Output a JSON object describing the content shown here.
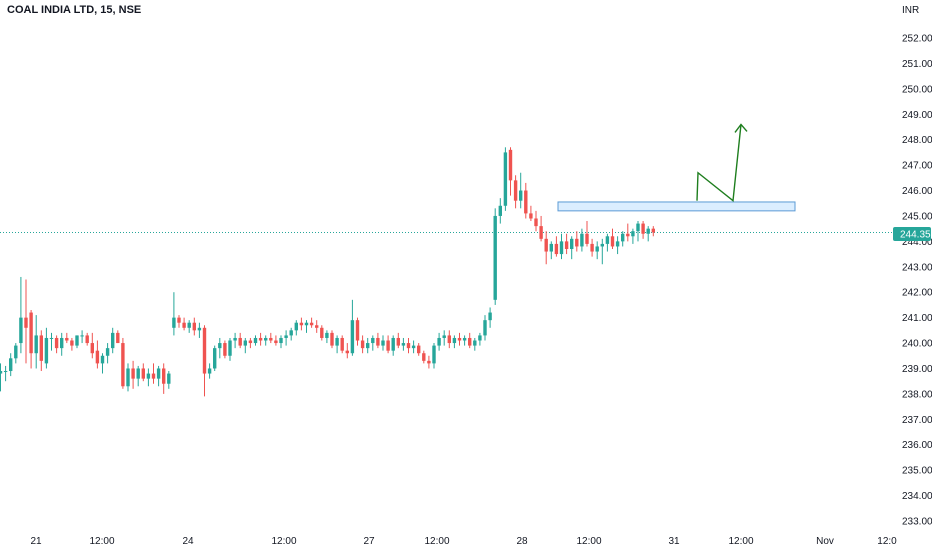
{
  "chart_data": {
    "type": "candlestick",
    "title": "COAL INDIA LTD, 15, NSE",
    "currency": "INR",
    "last_price": "244.35",
    "ylim": [
      232.7,
      252.5
    ],
    "y_ticks": [
      "252.00",
      "251.00",
      "250.00",
      "249.00",
      "248.00",
      "247.00",
      "246.00",
      "245.00",
      "244.00",
      "243.00",
      "242.00",
      "241.00",
      "240.00",
      "239.00",
      "238.00",
      "237.00",
      "236.00",
      "235.00",
      "234.00",
      "233.00"
    ],
    "x_ticks": [
      "21",
      "12:00",
      "24",
      "12:00",
      "27",
      "12:00",
      "28",
      "12:00",
      "31",
      "12:00",
      "Nov",
      "12:0"
    ],
    "colors": {
      "up": "#26a69a",
      "down": "#ef5350",
      "arrow": "#1e7e1e",
      "zone_fill": "#dbeeff",
      "zone_stroke": "#5b9bd5",
      "price_line": "#26a69a"
    },
    "zone": {
      "low": 245.2,
      "high": 245.55
    },
    "projection_arrow": [
      245.6,
      246.7,
      245.6,
      248.6
    ],
    "candles": [
      [
        238.8,
        239.2,
        238.1,
        238.9
      ],
      [
        238.9,
        239.1,
        238.5,
        238.9
      ],
      [
        238.9,
        239.6,
        238.7,
        239.4
      ],
      [
        239.4,
        240.0,
        239.2,
        239.9
      ],
      [
        240.0,
        242.6,
        239.6,
        241.0
      ],
      [
        241.0,
        242.5,
        239.2,
        240.6
      ],
      [
        241.2,
        241.3,
        239.0,
        239.6
      ],
      [
        239.6,
        241.1,
        239.0,
        240.3
      ],
      [
        240.3,
        240.5,
        238.9,
        239.3
      ],
      [
        239.2,
        240.6,
        239.0,
        240.2
      ],
      [
        240.2,
        240.4,
        239.7,
        240.2
      ],
      [
        240.2,
        240.3,
        239.6,
        239.8
      ],
      [
        239.8,
        240.4,
        239.5,
        240.2
      ],
      [
        240.2,
        240.4,
        240.0,
        240.1
      ],
      [
        240.1,
        240.2,
        239.7,
        239.9
      ],
      [
        239.9,
        240.3,
        239.8,
        240.3
      ],
      [
        240.3,
        240.5,
        240.0,
        240.3
      ],
      [
        240.3,
        240.4,
        239.9,
        240.0
      ],
      [
        240.0,
        240.4,
        239.4,
        239.6
      ],
      [
        239.7,
        240.1,
        239.0,
        239.2
      ],
      [
        239.2,
        239.6,
        238.8,
        239.5
      ],
      [
        239.5,
        240.0,
        239.2,
        239.8
      ],
      [
        239.8,
        240.6,
        239.6,
        240.4
      ],
      [
        240.4,
        240.5,
        240.0,
        240.0
      ],
      [
        240.0,
        240.2,
        238.2,
        238.3
      ],
      [
        238.3,
        239.2,
        238.1,
        239.0
      ],
      [
        239.0,
        239.3,
        238.2,
        238.6
      ],
      [
        238.6,
        239.1,
        238.3,
        239.0
      ],
      [
        239.0,
        239.2,
        238.5,
        238.6
      ],
      [
        238.6,
        239.0,
        238.3,
        238.8
      ],
      [
        238.8,
        239.2,
        238.4,
        238.6
      ],
      [
        238.6,
        239.1,
        238.3,
        239.0
      ],
      [
        239.0,
        239.2,
        238.0,
        238.4
      ],
      [
        238.4,
        238.9,
        238.2,
        238.8
      ],
      [
        240.6,
        242.0,
        240.3,
        241.0
      ],
      [
        241.0,
        241.1,
        240.6,
        240.8
      ],
      [
        240.8,
        241.0,
        240.5,
        240.6
      ],
      [
        240.6,
        240.9,
        240.4,
        240.8
      ],
      [
        240.8,
        241.0,
        240.3,
        240.5
      ],
      [
        240.5,
        240.8,
        240.2,
        240.6
      ],
      [
        240.6,
        240.7,
        237.9,
        238.8
      ],
      [
        238.8,
        239.2,
        238.6,
        239.0
      ],
      [
        239.0,
        239.9,
        238.9,
        239.8
      ],
      [
        239.8,
        240.2,
        239.4,
        240.0
      ],
      [
        240.0,
        240.1,
        239.4,
        239.5
      ],
      [
        239.5,
        240.2,
        239.3,
        240.1
      ],
      [
        240.1,
        240.4,
        239.8,
        240.2
      ],
      [
        240.2,
        240.4,
        239.8,
        239.9
      ],
      [
        239.9,
        240.2,
        239.6,
        240.1
      ],
      [
        240.1,
        240.2,
        239.8,
        240.0
      ],
      [
        240.0,
        240.3,
        239.9,
        240.2
      ],
      [
        240.2,
        240.4,
        239.9,
        240.1
      ],
      [
        240.1,
        240.3,
        239.9,
        240.2
      ],
      [
        240.2,
        240.4,
        240.0,
        240.1
      ],
      [
        240.1,
        240.3,
        239.9,
        240.0
      ],
      [
        240.0,
        240.3,
        239.8,
        240.2
      ],
      [
        240.2,
        240.5,
        239.9,
        240.3
      ],
      [
        240.3,
        240.6,
        240.1,
        240.5
      ],
      [
        240.5,
        240.9,
        240.3,
        240.8
      ],
      [
        240.8,
        241.0,
        240.5,
        240.7
      ],
      [
        240.7,
        240.9,
        240.4,
        240.8
      ],
      [
        240.8,
        241.0,
        240.6,
        240.7
      ],
      [
        240.7,
        240.9,
        240.4,
        240.6
      ],
      [
        240.6,
        240.7,
        240.1,
        240.2
      ],
      [
        240.2,
        240.5,
        240.0,
        240.4
      ],
      [
        240.4,
        240.5,
        239.8,
        239.9
      ],
      [
        239.9,
        240.3,
        239.6,
        240.2
      ],
      [
        240.2,
        240.3,
        239.6,
        239.7
      ],
      [
        239.7,
        240.0,
        239.4,
        239.6
      ],
      [
        239.6,
        241.7,
        239.5,
        240.9
      ],
      [
        240.9,
        241.0,
        239.9,
        240.1
      ],
      [
        240.1,
        240.3,
        239.6,
        239.8
      ],
      [
        239.8,
        240.2,
        239.6,
        240.0
      ],
      [
        240.0,
        240.3,
        239.7,
        240.2
      ],
      [
        240.2,
        240.4,
        239.8,
        239.9
      ],
      [
        239.9,
        240.3,
        239.7,
        240.1
      ],
      [
        240.1,
        240.3,
        239.6,
        239.7
      ],
      [
        239.7,
        240.3,
        239.5,
        240.2
      ],
      [
        240.2,
        240.4,
        239.8,
        239.9
      ],
      [
        239.9,
        240.2,
        239.7,
        240.0
      ],
      [
        240.0,
        240.2,
        239.6,
        239.8
      ],
      [
        239.8,
        240.1,
        239.6,
        239.9
      ],
      [
        239.9,
        240.0,
        239.5,
        239.6
      ],
      [
        239.6,
        239.7,
        239.2,
        239.3
      ],
      [
        239.3,
        239.5,
        239.0,
        239.2
      ],
      [
        239.2,
        240.0,
        239.0,
        239.9
      ],
      [
        239.9,
        240.4,
        239.7,
        240.2
      ],
      [
        240.2,
        240.5,
        239.9,
        240.3
      ],
      [
        240.3,
        240.5,
        239.8,
        240.0
      ],
      [
        240.0,
        240.3,
        239.8,
        240.2
      ],
      [
        240.2,
        240.4,
        239.9,
        240.1
      ],
      [
        240.1,
        240.3,
        239.9,
        240.2
      ],
      [
        240.2,
        240.4,
        239.8,
        239.9
      ],
      [
        239.9,
        240.2,
        239.7,
        240.1
      ],
      [
        240.1,
        240.4,
        239.9,
        240.3
      ],
      [
        240.3,
        241.1,
        240.1,
        240.9
      ],
      [
        240.9,
        241.4,
        240.6,
        241.2
      ],
      [
        241.7,
        245.3,
        241.5,
        245.0
      ],
      [
        245.0,
        245.7,
        244.7,
        245.4
      ],
      [
        245.4,
        247.7,
        245.2,
        247.5
      ],
      [
        247.6,
        247.7,
        245.8,
        246.4
      ],
      [
        246.4,
        246.6,
        245.3,
        245.6
      ],
      [
        245.6,
        246.7,
        245.3,
        246.0
      ],
      [
        246.0,
        246.3,
        244.9,
        245.1
      ],
      [
        245.1,
        245.4,
        244.8,
        244.9
      ],
      [
        244.9,
        245.2,
        244.4,
        244.6
      ],
      [
        244.6,
        245.0,
        244.0,
        244.1
      ],
      [
        244.1,
        244.4,
        243.1,
        243.6
      ],
      [
        243.6,
        244.0,
        243.3,
        243.9
      ],
      [
        243.9,
        244.2,
        243.4,
        243.5
      ],
      [
        243.5,
        244.3,
        243.3,
        244.0
      ],
      [
        244.0,
        244.3,
        243.5,
        243.7
      ],
      [
        243.7,
        244.2,
        243.3,
        244.1
      ],
      [
        244.1,
        244.4,
        243.6,
        243.8
      ],
      [
        243.8,
        244.5,
        243.6,
        244.3
      ],
      [
        244.3,
        244.8,
        243.8,
        243.9
      ],
      [
        243.9,
        244.1,
        243.4,
        243.6
      ],
      [
        243.6,
        244.0,
        243.3,
        243.8
      ],
      [
        243.8,
        244.1,
        243.1,
        243.9
      ],
      [
        243.9,
        244.3,
        243.6,
        244.2
      ],
      [
        244.2,
        244.5,
        243.7,
        243.8
      ],
      [
        243.8,
        244.2,
        243.5,
        244.0
      ],
      [
        244.0,
        244.4,
        243.8,
        244.3
      ],
      [
        244.3,
        244.7,
        244.0,
        244.2
      ],
      [
        244.2,
        244.5,
        243.9,
        244.4
      ],
      [
        244.4,
        244.8,
        244.0,
        244.7
      ],
      [
        244.7,
        244.8,
        244.1,
        244.3
      ],
      [
        244.3,
        244.6,
        244.0,
        244.5
      ],
      [
        244.5,
        244.6,
        244.2,
        244.35
      ]
    ]
  }
}
